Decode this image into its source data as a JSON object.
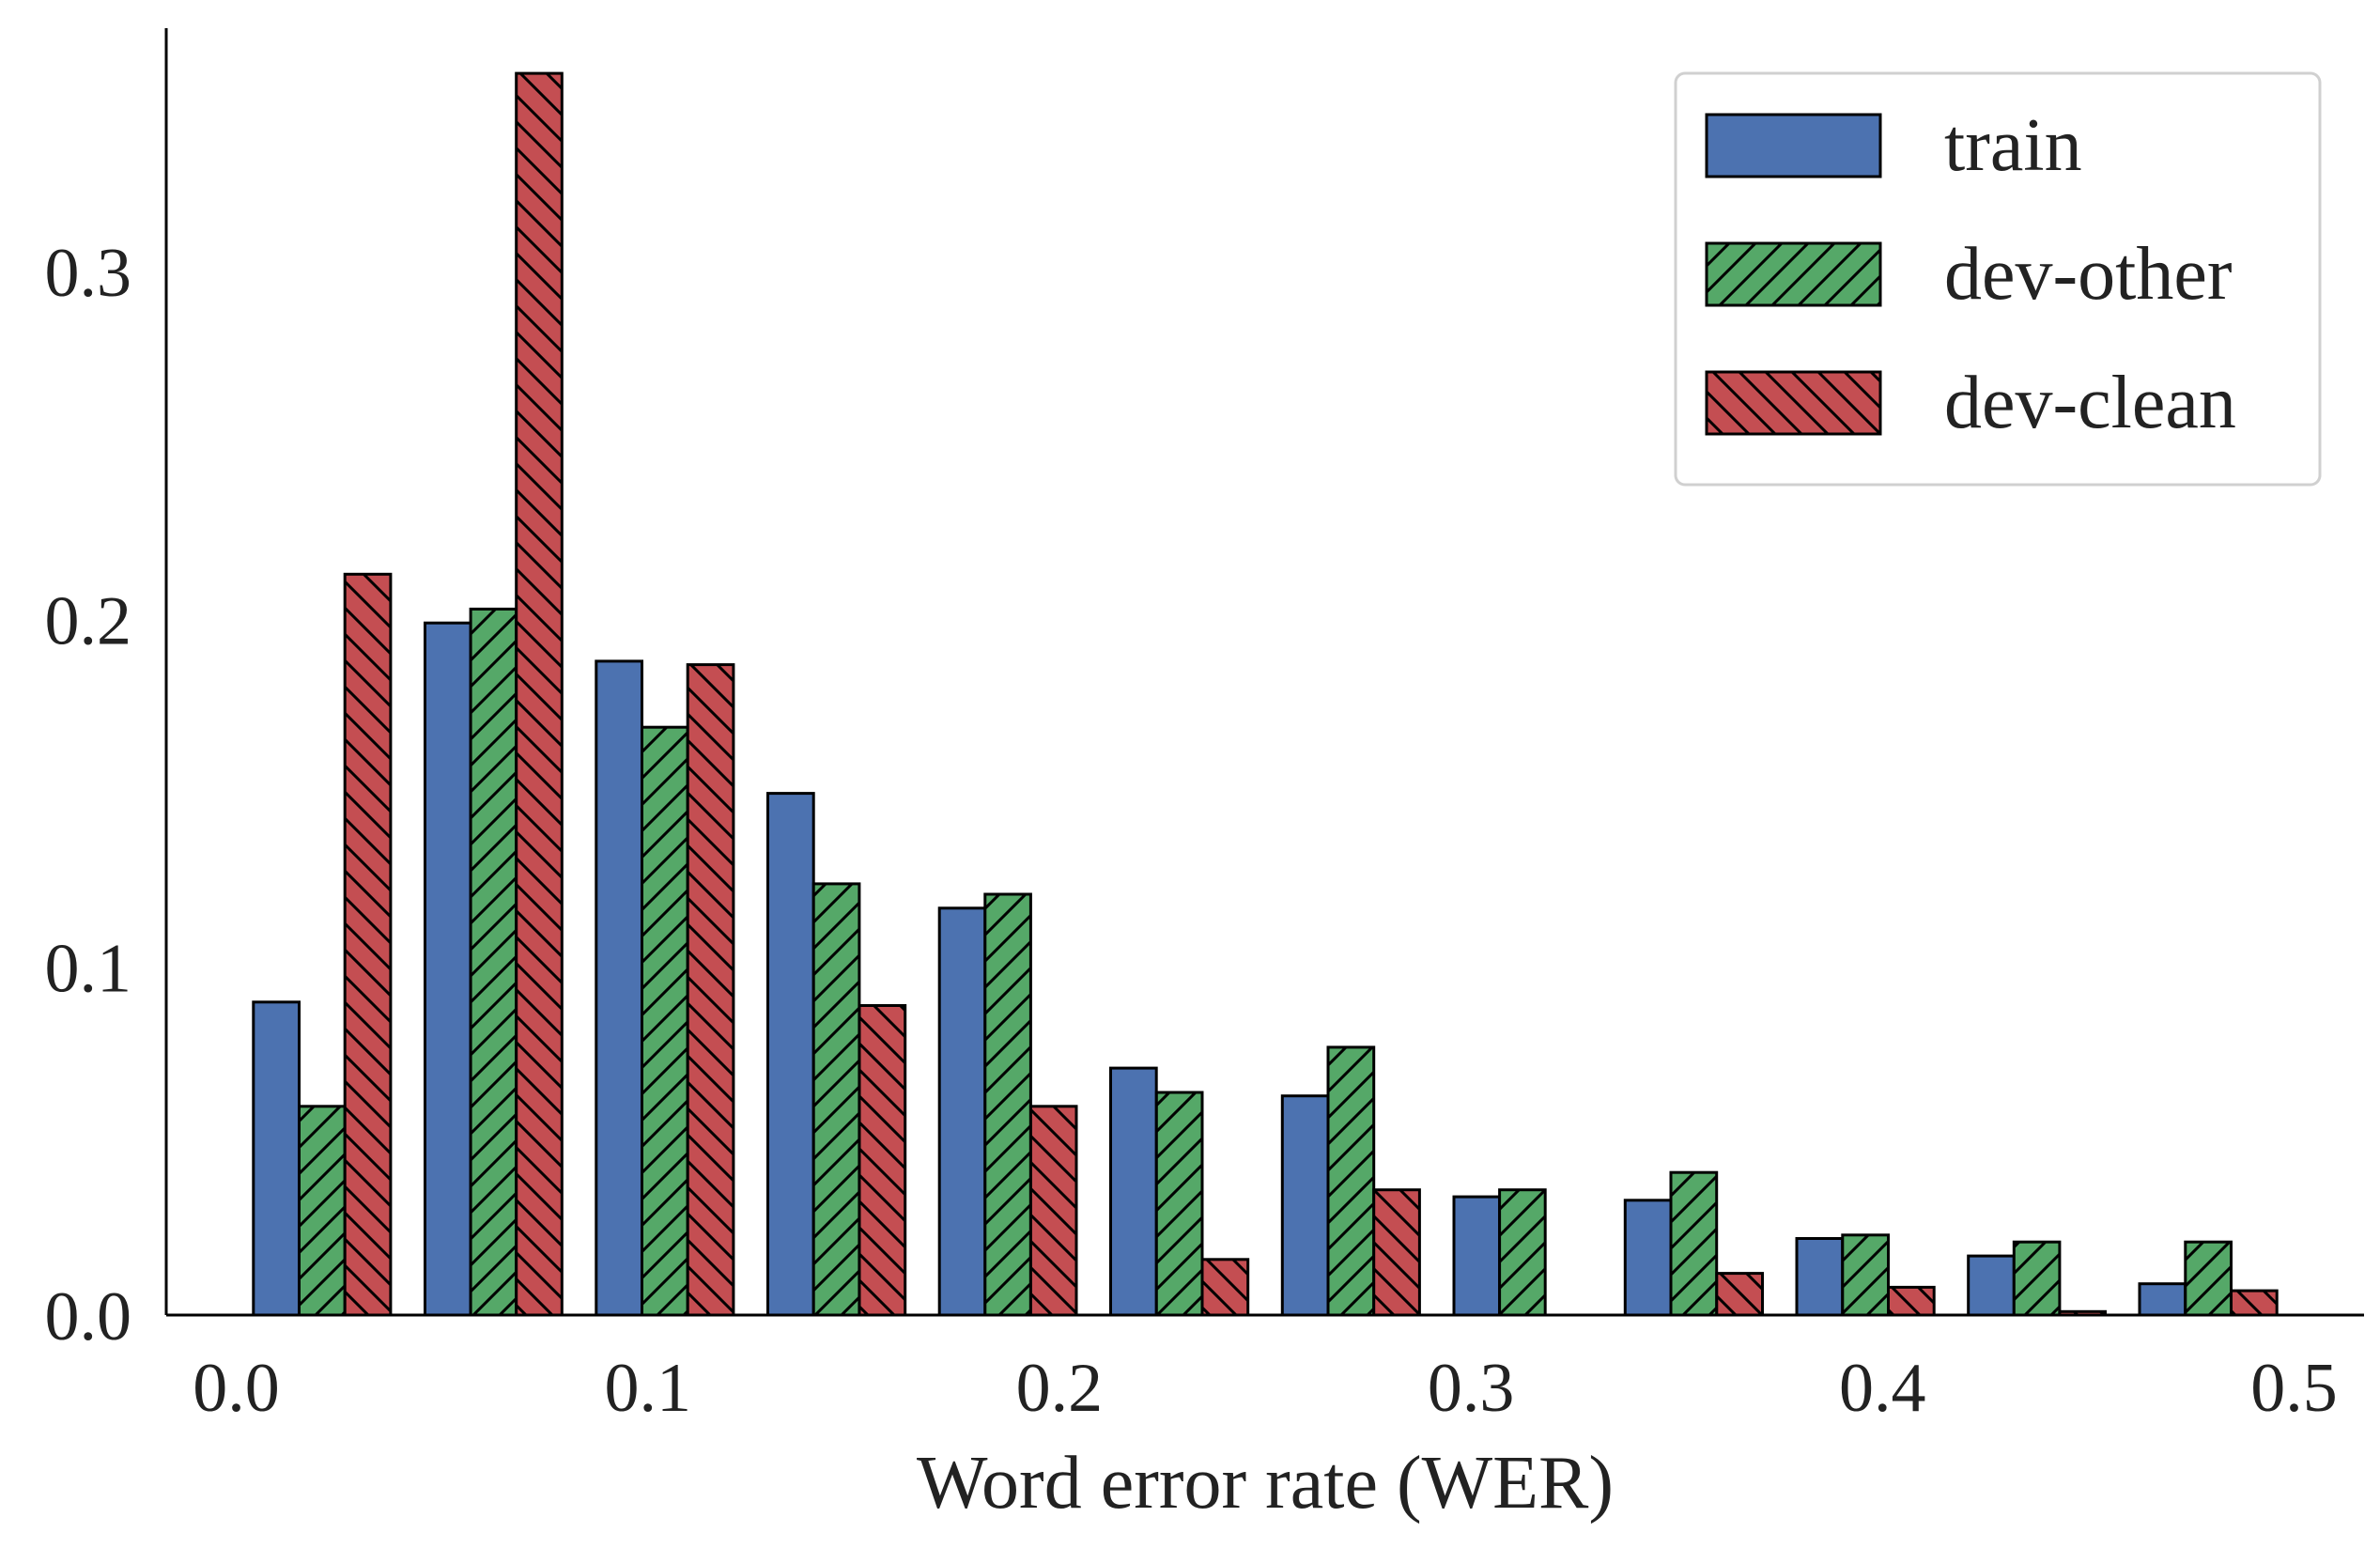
{
  "chart_data": {
    "type": "bar",
    "xlabel": "Word error rate (WER)",
    "ylabel": "",
    "title": "",
    "xlim": [
      -0.017,
      0.517
    ],
    "ylim": [
      0,
      0.37
    ],
    "xticks": [
      "0.0",
      "0.1",
      "0.2",
      "0.3",
      "0.4",
      "0.5"
    ],
    "xtick_values": [
      0.0,
      0.1,
      0.2,
      0.3,
      0.4,
      0.5
    ],
    "yticks": [
      "0.0",
      "0.1",
      "0.2",
      "0.3"
    ],
    "ytick_values": [
      0.0,
      0.1,
      0.2,
      0.3
    ],
    "bin_edges": [
      0.0,
      0.0417,
      0.0833,
      0.125,
      0.1667,
      0.2083,
      0.25,
      0.2917,
      0.3333,
      0.375,
      0.4167,
      0.4583,
      0.5
    ],
    "legend_position": "top-right",
    "grid": false,
    "series": [
      {
        "name": "train",
        "color": "#4c72b0",
        "hatch": "none",
        "values": [
          0.09,
          0.199,
          0.188,
          0.15,
          0.117,
          0.071,
          0.063,
          0.034,
          0.033,
          0.022,
          0.017,
          0.009
        ]
      },
      {
        "name": "dev-other",
        "color": "#55a868",
        "hatch": "forward",
        "values": [
          0.06,
          0.203,
          0.169,
          0.124,
          0.121,
          0.064,
          0.077,
          0.036,
          0.041,
          0.023,
          0.021,
          0.021
        ]
      },
      {
        "name": "dev-clean",
        "color": "#c44e52",
        "hatch": "back",
        "values": [
          0.213,
          0.357,
          0.187,
          0.089,
          0.06,
          0.016,
          0.036,
          0.0,
          0.012,
          0.008,
          0.001,
          0.007
        ]
      }
    ]
  }
}
